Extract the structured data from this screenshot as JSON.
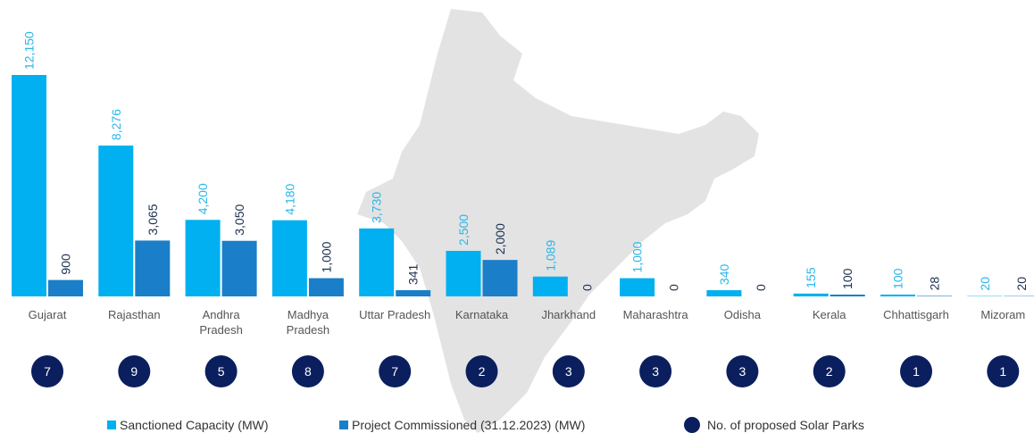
{
  "chart_data": {
    "type": "bar",
    "categories": [
      "Gujarat",
      "Rajasthan",
      "Andhra Pradesh",
      "Madhya Pradesh",
      "Uttar Pradesh",
      "Karnataka",
      "Jharkhand",
      "Maharashtra",
      "Odisha",
      "Kerala",
      "Chhattisgarh",
      "Mizoram"
    ],
    "series": [
      {
        "name": "Sanctioned Capacity (MW)",
        "color": "#00b0f0",
        "values": [
          12150,
          8276,
          4200,
          4180,
          3730,
          2500,
          1089,
          1000,
          340,
          155,
          100,
          20
        ],
        "value_labels": [
          "12,150",
          "8,276",
          "4,200",
          "4,180",
          "3,730",
          "2,500",
          "1,089",
          "1,000",
          "340",
          "155",
          "100",
          "20"
        ]
      },
      {
        "name": "Project Commissioned (31.12.2023) (MW)",
        "color": "#1a7fc8",
        "values": [
          900,
          3065,
          3050,
          1000,
          341,
          2000,
          0,
          0,
          0,
          100,
          28,
          20
        ],
        "value_labels": [
          "900",
          "3,065",
          "3,050",
          "1,000",
          "341",
          "2,000",
          "0",
          "0",
          "0",
          "100",
          "28",
          "20"
        ]
      },
      {
        "name": "No. of proposed Solar Parks",
        "color": "#0b1f5e",
        "type": "marker",
        "values": [
          7,
          9,
          5,
          8,
          7,
          2,
          3,
          3,
          3,
          2,
          1,
          1
        ]
      }
    ]
  }
}
